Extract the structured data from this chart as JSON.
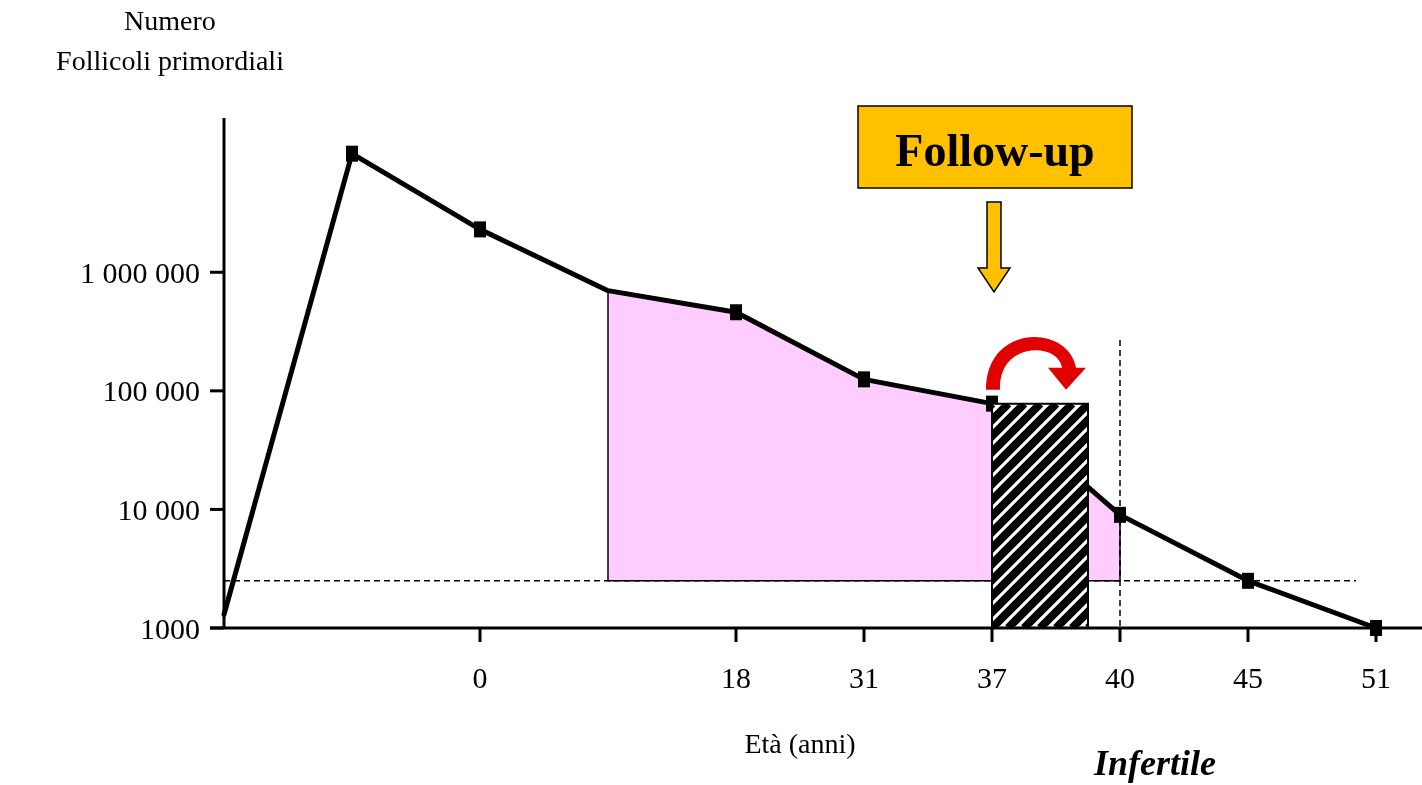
{
  "chart_data": {
    "type": "line",
    "ylabel": "Numero\nFollicoli primordiali",
    "xlabel": "Età (anni)",
    "categories": [
      null,
      null,
      "0",
      null,
      "18",
      "31",
      "37",
      "40",
      "45",
      "51"
    ],
    "log": "y",
    "ylim": [
      1000,
      20000000
    ],
    "yticks": [
      1000,
      {
        "value": 10000,
        "label": "10 000"
      },
      {
        "value": 100000,
        "label": "100 000"
      },
      {
        "value": 1000000,
        "label": "1 000 000"
      }
    ],
    "series": [
      {
        "type": "area",
        "color": "#ffccff",
        "values": [
          null,
          null,
          null,
          700000,
          460000,
          125000,
          78000,
          9000,
          null,
          null
        ]
      },
      {
        "color": "#000000",
        "marker": "none",
        "line_style": "solid",
        "values": [
          1300,
          10000000,
          2300000,
          700000,
          460000,
          125000,
          78000,
          9000,
          2500,
          1000
        ]
      },
      {
        "type": "scatter",
        "color": "#000000",
        "marker": "square",
        "values": [
          null,
          10000000,
          2300000,
          null,
          460000,
          125000,
          78000,
          9000,
          2500,
          1000
        ]
      }
    ],
    "ref_lines": [
      {
        "axis": "y",
        "value": 2500,
        "line_style": "dashed",
        "color": "#000000"
      },
      {
        "axis": "x",
        "value": "40",
        "line_style": "dashed",
        "color": "#000000"
      }
    ],
    "annotations": [
      "Follow-up",
      "Infertile"
    ]
  }
}
